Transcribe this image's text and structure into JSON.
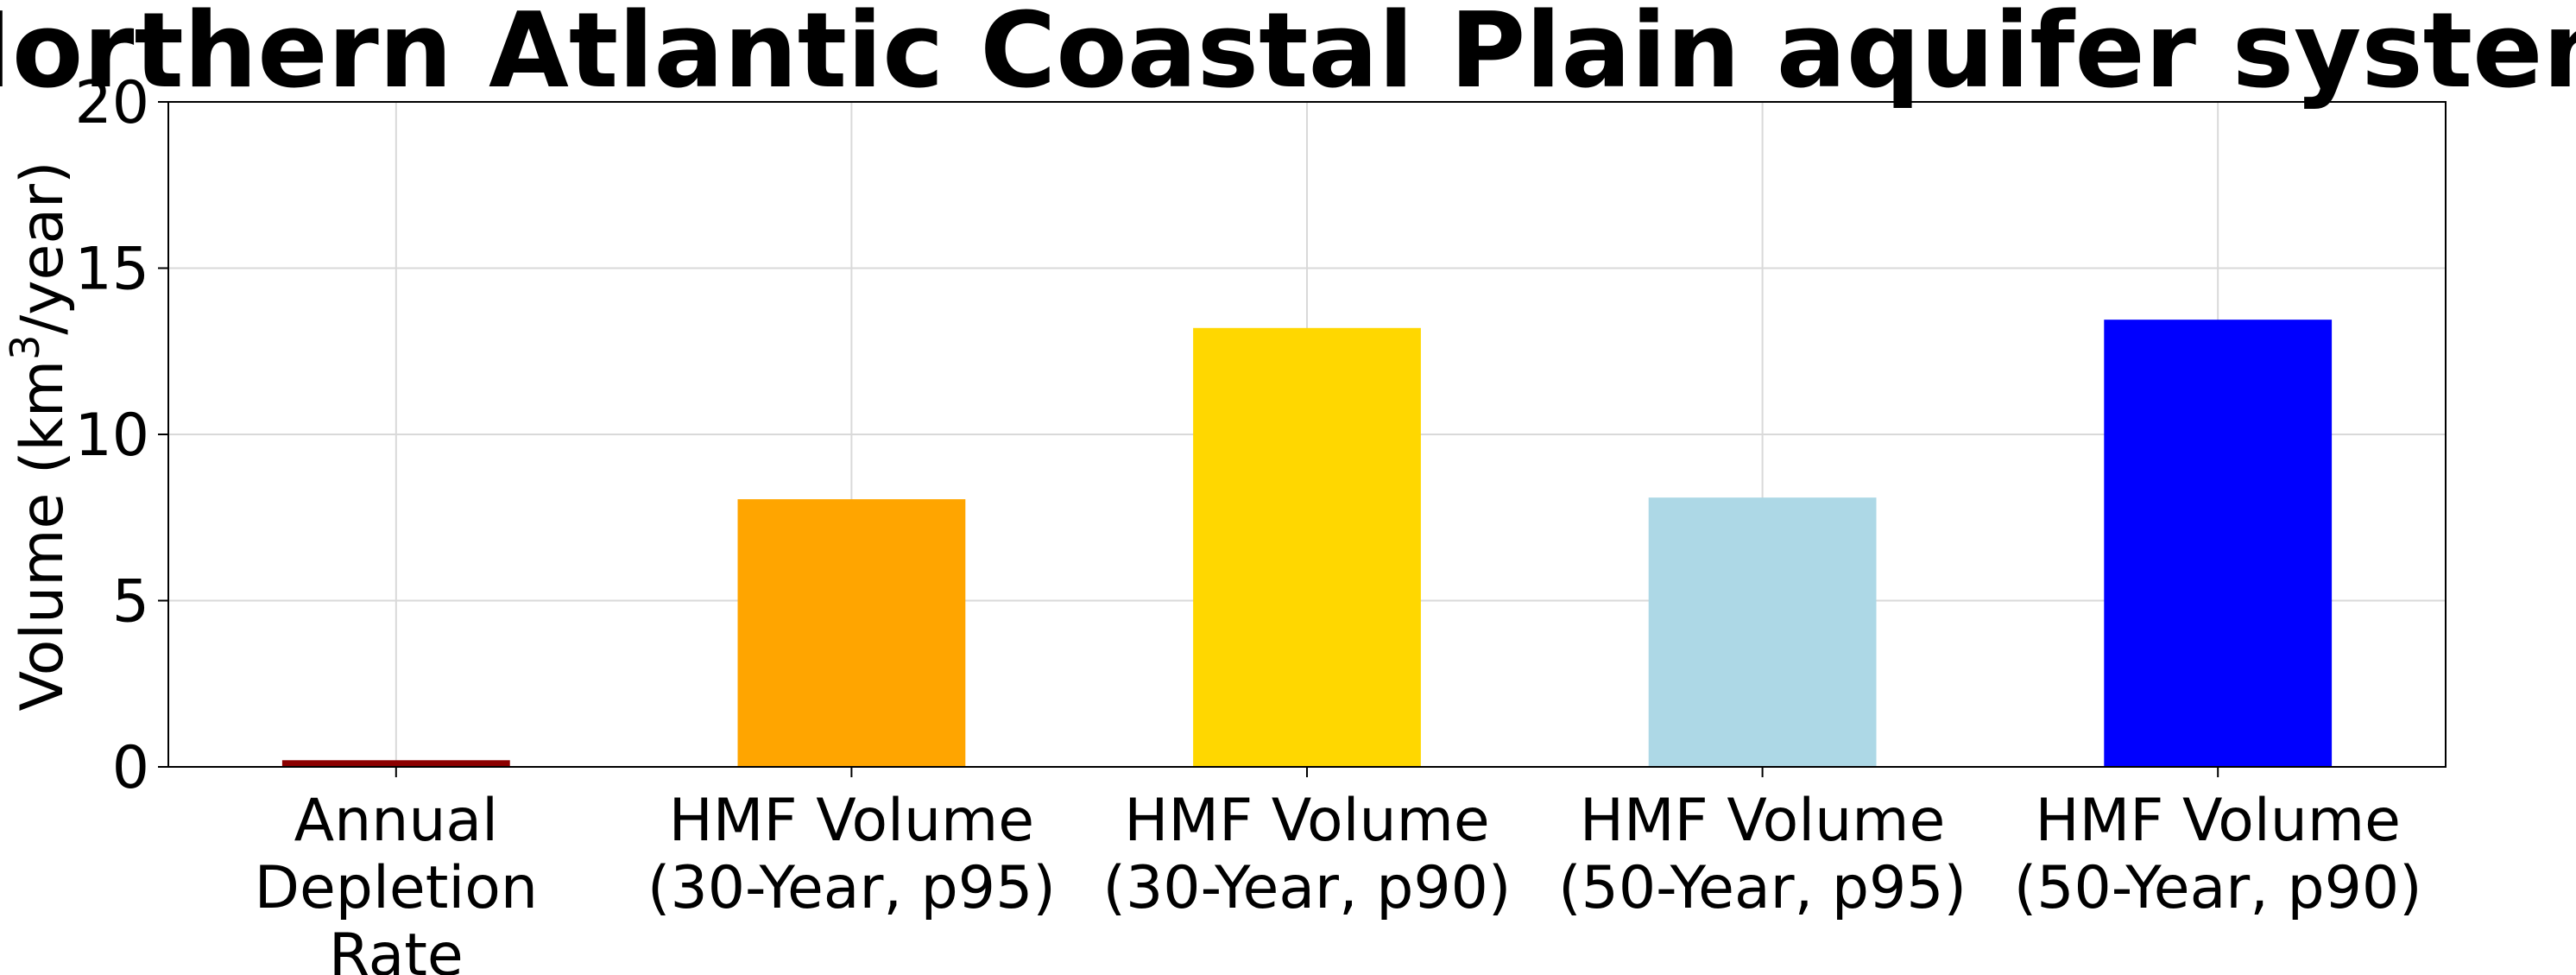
{
  "chart_data": {
    "type": "bar",
    "title": "Northern Atlantic Coastal Plain aquifer system",
    "ylabel_prefix": "Volume (km",
    "ylabel_sup": "3",
    "ylabel_suffix": "/year)",
    "xlabel": "",
    "ylim": [
      0,
      20
    ],
    "yticks": [
      0,
      5,
      10,
      15,
      20
    ],
    "grid": true,
    "legend": "none",
    "categories": [
      [
        "Annual",
        "Depletion",
        "Rate"
      ],
      [
        "HMF Volume",
        "(30-Year, p95)"
      ],
      [
        "HMF Volume",
        "(30-Year, p90)"
      ],
      [
        "HMF Volume",
        "(50-Year, p95)"
      ],
      [
        "HMF Volume",
        "(50-Year, p90)"
      ]
    ],
    "values": [
      0.2,
      8.05,
      13.2,
      8.1,
      13.45
    ],
    "colors": [
      "#8b0000",
      "#ffa500",
      "#ffd700",
      "#add8e6",
      "#0000ff"
    ]
  }
}
